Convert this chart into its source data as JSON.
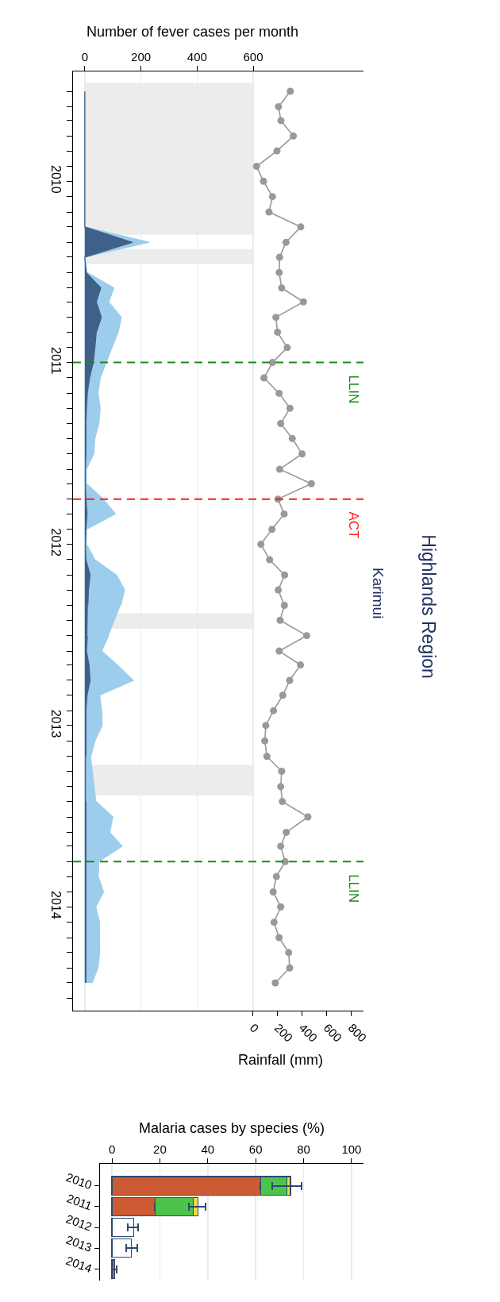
{
  "chart_data": [
    {
      "type": "area",
      "annotations": [
        "Highlands Region",
        "Karimui"
      ],
      "xlabel": "Rainfall (mm)",
      "x2label": "Number of fever cases per month",
      "orientation": "horizontal",
      "x": [
        "2010-01",
        "2010-02",
        "2010-03",
        "2010-04",
        "2010-05",
        "2010-06",
        "2010-07",
        "2010-08",
        "2010-09",
        "2010-10",
        "2010-11",
        "2010-12",
        "2011-01",
        "2011-02",
        "2011-03",
        "2011-04",
        "2011-05",
        "2011-06",
        "2011-07",
        "2011-08",
        "2011-09",
        "2011-10",
        "2011-11",
        "2011-12",
        "2012-01",
        "2012-02",
        "2012-03",
        "2012-04",
        "2012-05",
        "2012-06",
        "2012-07",
        "2012-08",
        "2012-09",
        "2012-10",
        "2012-11",
        "2012-12",
        "2013-01",
        "2013-02",
        "2013-03",
        "2013-04",
        "2013-05",
        "2013-06",
        "2013-07",
        "2013-08",
        "2013-09",
        "2013-10",
        "2013-11",
        "2013-12",
        "2014-01",
        "2014-02",
        "2014-03",
        "2014-04",
        "2014-05",
        "2014-06",
        "2014-07",
        "2014-08",
        "2014-09",
        "2014-10",
        "2014-11",
        "2014-12"
      ],
      "series": [
        {
          "type": "area",
          "axis": "x2",
          "color": "#9dcdec",
          "values": [
            0,
            0,
            0,
            0,
            0,
            0,
            0,
            0,
            0,
            0,
            229,
            0,
            8,
            104,
            85,
            130,
            119,
            97,
            76,
            55,
            47,
            55,
            50,
            36,
            32,
            6,
            6,
            66,
            109,
            6,
            6,
            36,
            113,
            142,
            128,
            null,
            85,
            60,
            116,
            173,
            53,
            60,
            62,
            36,
            22,
            null,
            null,
            41,
            100,
            89,
            133,
            50,
            48,
            67,
            39,
            53,
            52,
            53,
            47,
            26
          ]
        },
        {
          "type": "area",
          "axis": "x2",
          "color": "#3f6188",
          "values": [
            0,
            0,
            0,
            0,
            0,
            0,
            0,
            0,
            0,
            0,
            170,
            0,
            5,
            57,
            41,
            59,
            41,
            36,
            30,
            17,
            9,
            6,
            4,
            4,
            4,
            2,
            2,
            4,
            8,
            4,
            2,
            4,
            19,
            13,
            11,
            null,
            9,
            6,
            15,
            19,
            8,
            4,
            4,
            4,
            4,
            null,
            null,
            4,
            4,
            4,
            4,
            4,
            4,
            4,
            4,
            4,
            4,
            4,
            4,
            4
          ]
        },
        {
          "type": "line",
          "color": "#999999",
          "marker": "circle",
          "values": [
            302,
            206,
            226,
            327,
            194,
            28,
            84,
            157,
            129,
            387,
            267,
            215,
            212,
            232,
            409,
            185,
            198,
            277,
            157,
            88,
            211,
            299,
            224,
            318,
            398,
            215,
            473,
            202,
            252,
            153,
            63,
            134,
            256,
            204,
            254,
            219,
            435,
            212,
            385,
            297,
            241,
            165,
            103,
            95,
            112,
            232,
            224,
            237,
            445,
            269,
            224,
            260,
            189,
            163,
            224,
            170,
            211,
            289,
            297,
            180
          ]
        }
      ],
      "xlim": [
        -1464,
        897
      ],
      "xticks": [
        0,
        200,
        400,
        600,
        800
      ],
      "x2lim": [
        -42,
        993
      ],
      "x2ticks": [
        0,
        200,
        400,
        600
      ],
      "ylim": [
        "2015-01-26",
        "2009-11-22"
      ],
      "yticks": [
        {
          "value": "2010-01",
          "label": null
        },
        {
          "value": "2010-02",
          "label": null
        },
        {
          "value": "2010-03",
          "label": null
        },
        {
          "value": "2010-04",
          "label": null
        },
        {
          "value": "2010-05",
          "label": null
        },
        {
          "value": "2010-06",
          "label": null
        },
        {
          "value": "2010-07",
          "label": "2010"
        },
        {
          "value": "2010-08",
          "label": null
        },
        {
          "value": "2010-09",
          "label": null
        },
        {
          "value": "2010-10",
          "label": null
        },
        {
          "value": "2010-11",
          "label": null
        },
        {
          "value": "2010-12",
          "label": null
        },
        {
          "value": "2011-01",
          "label": null
        },
        {
          "value": "2011-02",
          "label": null
        },
        {
          "value": "2011-03",
          "label": null
        },
        {
          "value": "2011-04",
          "label": null
        },
        {
          "value": "2011-05",
          "label": null
        },
        {
          "value": "2011-06",
          "label": null
        },
        {
          "value": "2011-07",
          "label": "2011"
        },
        {
          "value": "2011-08",
          "label": null
        },
        {
          "value": "2011-09",
          "label": null
        },
        {
          "value": "2011-10",
          "label": null
        },
        {
          "value": "2011-11",
          "label": null
        },
        {
          "value": "2011-12",
          "label": null
        },
        {
          "value": "2012-01",
          "label": null
        },
        {
          "value": "2012-02",
          "label": null
        },
        {
          "value": "2012-03",
          "label": null
        },
        {
          "value": "2012-04",
          "label": null
        },
        {
          "value": "2012-05",
          "label": null
        },
        {
          "value": "2012-06",
          "label": null
        },
        {
          "value": "2012-07",
          "label": "2012"
        },
        {
          "value": "2012-08",
          "label": null
        },
        {
          "value": "2012-09",
          "label": null
        },
        {
          "value": "2012-10",
          "label": null
        },
        {
          "value": "2012-11",
          "label": null
        },
        {
          "value": "2012-12",
          "label": null
        },
        {
          "value": "2013-01",
          "label": null
        },
        {
          "value": "2013-02",
          "label": null
        },
        {
          "value": "2013-03",
          "label": null
        },
        {
          "value": "2013-04",
          "label": null
        },
        {
          "value": "2013-05",
          "label": null
        },
        {
          "value": "2013-06",
          "label": null
        },
        {
          "value": "2013-07",
          "label": "2013"
        },
        {
          "value": "2013-08",
          "label": null
        },
        {
          "value": "2013-09",
          "label": null
        },
        {
          "value": "2013-10",
          "label": null
        },
        {
          "value": "2013-11",
          "label": null
        },
        {
          "value": "2013-12",
          "label": null
        },
        {
          "value": "2014-01",
          "label": null
        },
        {
          "value": "2014-02",
          "label": null
        },
        {
          "value": "2014-03",
          "label": null
        },
        {
          "value": "2014-04",
          "label": null
        },
        {
          "value": "2014-05",
          "label": null
        },
        {
          "value": "2014-06",
          "label": null
        },
        {
          "value": "2014-07",
          "label": "2014"
        },
        {
          "value": "2014-08",
          "label": null
        },
        {
          "value": "2014-09",
          "label": null
        },
        {
          "value": "2014-10",
          "label": null
        },
        {
          "value": "2014-11",
          "label": null
        },
        {
          "value": "2014-12",
          "label": null
        },
        {
          "value": "2015-01",
          "label": null
        }
      ],
      "grid": "x",
      "ref_lines": [
        {
          "axis": "y",
          "value": "2011-07",
          "label": "LLIN",
          "color": "#1a8a1a",
          "line_style": "dashed"
        },
        {
          "axis": "y",
          "value": "2012-04",
          "label": "ACT",
          "color": "#ff1a1a",
          "line_style": "dashed"
        },
        {
          "axis": "y",
          "value": "2014-04",
          "label": "LLIN",
          "color": "#1a8a1a",
          "line_style": "dashed"
        }
      ],
      "bands": [
        {
          "axis": "y",
          "from": "2009-12-15",
          "to": "2010-10-17",
          "color": "#ececec"
        },
        {
          "axis": "y",
          "from": "2010-11-15",
          "to": "2010-12-15",
          "color": "#ececec"
        },
        {
          "axis": "y",
          "from": "2012-11-17",
          "to": "2012-12-18",
          "color": "#ececec"
        },
        {
          "axis": "y",
          "from": "2013-09-18",
          "to": "2013-11-19",
          "color": "#ececec"
        }
      ]
    },
    {
      "type": "bar",
      "xlabel": "Malaria cases by species (%)",
      "orientation": "horizontal",
      "stacked": true,
      "categories": [
        "2010",
        "2011",
        "2012",
        "2013",
        "2014"
      ],
      "series": [
        {
          "color": "#cc5a33",
          "values": [
            62,
            18,
            null,
            null,
            1
          ],
          "errors": [
            null,
            null,
            null,
            null,
            [
              0,
              2
            ]
          ]
        },
        {
          "color": "#4cc44c",
          "values": [
            11,
            16,
            null,
            null,
            null
          ]
        },
        {
          "color": "#f2dc3c",
          "values": [
            1.5,
            2,
            null,
            null,
            null
          ],
          "errors": [
            [
              67,
              79
            ],
            [
              32,
              39
            ],
            null,
            null,
            null
          ]
        },
        {
          "color": "#ffffff",
          "values": [
            null,
            null,
            9,
            8,
            null
          ],
          "errors": [
            null,
            null,
            [
              6.5,
              11
            ],
            [
              6,
              10.5
            ],
            null
          ]
        }
      ],
      "xlim": [
        -5,
        105
      ],
      "xticks": [
        0,
        20,
        40,
        60,
        80,
        100
      ],
      "grid": "x"
    }
  ]
}
